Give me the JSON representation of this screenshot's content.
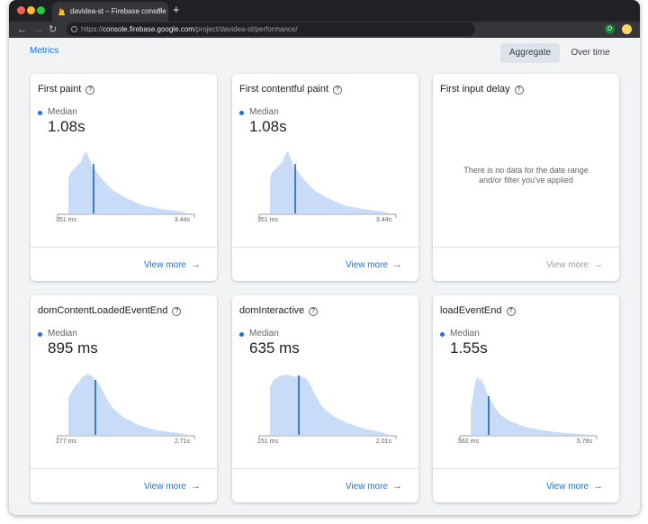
{
  "browser": {
    "tab_title": "davidea-st – Firebase console",
    "tab_close": "×",
    "new_tab": "+",
    "url_scheme": "https://",
    "url_host": "console.firebase.google.com",
    "url_path": "/project/davidea-st/performance/",
    "profile_initial": "D",
    "back_icon": "←",
    "forward_icon": "→",
    "reload_icon": "↻"
  },
  "header": {
    "title": "Metrics",
    "toggle_aggregate": "Aggregate",
    "toggle_over_time": "Over time",
    "active_toggle": "Aggregate"
  },
  "help_glyph": "?",
  "cards": [
    {
      "title": "First paint",
      "median_label": "Median",
      "median_value": "1.08s",
      "min_label": "351 ms",
      "max_label": "3.44s",
      "view_more": "View more",
      "arrow": "→"
    },
    {
      "title": "First contentful paint",
      "median_label": "Median",
      "median_value": "1.08s",
      "min_label": "351 ms",
      "max_label": "3.44s",
      "view_more": "View more",
      "arrow": "→"
    },
    {
      "title": "First input delay",
      "nodata_line1": "There is no data for the date range",
      "nodata_line2": "and/or filter you've applied",
      "view_more": "View more",
      "arrow": "→"
    },
    {
      "title": "domContentLoadedEventEnd",
      "median_label": "Median",
      "median_value": "895 ms",
      "min_label": "277 ms",
      "max_label": "2.71s",
      "view_more": "View more",
      "arrow": "→"
    },
    {
      "title": "domInteractive",
      "median_label": "Median",
      "median_value": "635 ms",
      "min_label": "151 ms",
      "max_label": "2.01s",
      "view_more": "View more",
      "arrow": "→"
    },
    {
      "title": "loadEventEnd",
      "median_label": "Median",
      "median_value": "1.55s",
      "min_label": "562 ms",
      "max_label": "5.78s",
      "view_more": "View more",
      "arrow": "→"
    }
  ],
  "colors": {
    "accent": "#1a73e8",
    "distribution_fill": "#c9dcf7",
    "median_line": "#1558b0",
    "axis": "#9aa0a6",
    "disabled": "#9aa0a6"
  }
}
